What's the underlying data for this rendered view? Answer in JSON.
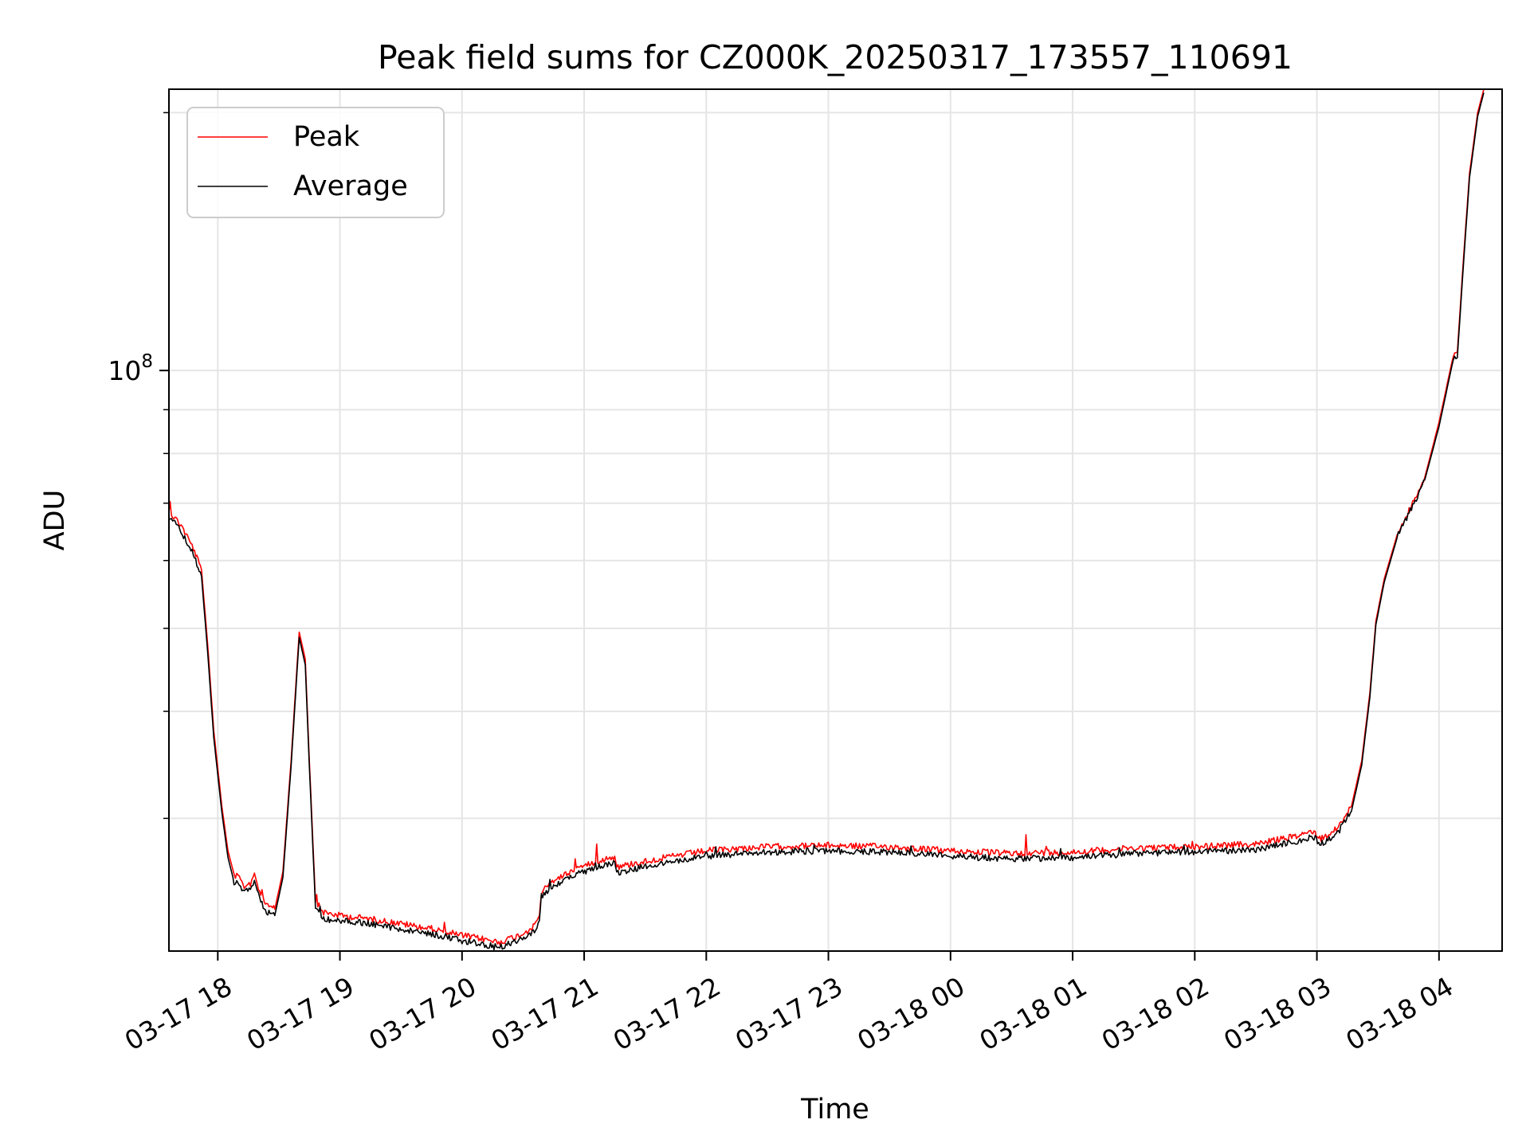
{
  "chart_data": {
    "type": "line",
    "title": "Peak field sums for CZ000K_20250317_173557_110691",
    "xlabel": "Time",
    "ylabel": "ADU",
    "yscale": "log",
    "grid": true,
    "legend_placement": "upper-left",
    "xlim": [
      "2025-03-17 17:36",
      "2025-03-18 04:31"
    ],
    "ylim": [
      21000000,
      213000000
    ],
    "x_ticks": [
      "2025-03-17 18:00",
      "2025-03-17 19:00",
      "2025-03-17 20:00",
      "2025-03-17 21:00",
      "2025-03-17 22:00",
      "2025-03-17 23:00",
      "2025-03-18 00:00",
      "2025-03-18 01:00",
      "2025-03-18 02:00",
      "2025-03-18 03:00",
      "2025-03-18 04:00"
    ],
    "x_tick_labels": [
      "03-17 18",
      "03-17 19",
      "03-17 20",
      "03-17 21",
      "03-17 22",
      "03-17 23",
      "03-18 00",
      "03-18 01",
      "03-18 02",
      "03-18 03",
      "03-18 04"
    ],
    "y_ticks": [
      100000000
    ],
    "y_tick_labels": [
      {
        "base": "10",
        "exp": "8"
      }
    ],
    "y_minor_ticks": [
      30000000,
      40000000,
      50000000,
      60000000,
      70000000,
      80000000,
      90000000,
      200000000
    ],
    "series": [
      {
        "name": "Peak",
        "color": "#ff0000",
        "points": [
          [
            "2025-03-17 17:36",
            68500000
          ],
          [
            "2025-03-17 17:42",
            66000000
          ],
          [
            "2025-03-17 17:48",
            62000000
          ],
          [
            "2025-03-17 17:52",
            58500000
          ],
          [
            "2025-03-17 17:55",
            48000000
          ],
          [
            "2025-03-17 17:58",
            38000000
          ],
          [
            "2025-03-17 18:02",
            31000000
          ],
          [
            "2025-03-17 18:05",
            27500000
          ],
          [
            "2025-03-17 18:08",
            25800000
          ],
          [
            "2025-03-17 18:10",
            25600000
          ],
          [
            "2025-03-17 18:13",
            25000000
          ],
          [
            "2025-03-17 18:16",
            25200000
          ],
          [
            "2025-03-17 18:18",
            25900000
          ],
          [
            "2025-03-17 18:20",
            24800000
          ],
          [
            "2025-03-17 18:24",
            23700000
          ],
          [
            "2025-03-17 18:28",
            23500000
          ],
          [
            "2025-03-17 18:32",
            26000000
          ],
          [
            "2025-03-17 18:36",
            35000000
          ],
          [
            "2025-03-17 18:40",
            49500000
          ],
          [
            "2025-03-17 18:43",
            46000000
          ],
          [
            "2025-03-17 18:45",
            35000000
          ],
          [
            "2025-03-17 18:48",
            24000000
          ],
          [
            "2025-03-17 18:52",
            23300000
          ],
          [
            "2025-03-17 19:00",
            23100000
          ],
          [
            "2025-03-17 19:15",
            22900000
          ],
          [
            "2025-03-17 19:30",
            22600000
          ],
          [
            "2025-03-17 19:45",
            22300000
          ],
          [
            "2025-03-17 20:00",
            21900000
          ],
          [
            "2025-03-17 20:10",
            21700000
          ],
          [
            "2025-03-17 20:18",
            21500000
          ],
          [
            "2025-03-17 20:28",
            21900000
          ],
          [
            "2025-03-17 20:35",
            22400000
          ],
          [
            "2025-03-17 20:38",
            23100000
          ],
          [
            "2025-03-17 20:39",
            24600000
          ],
          [
            "2025-03-17 20:45",
            25400000
          ],
          [
            "2025-03-17 20:55",
            26100000
          ],
          [
            "2025-03-17 21:05",
            26700000
          ],
          [
            "2025-03-17 21:15",
            27100000
          ],
          [
            "2025-03-17 21:16",
            26300000
          ],
          [
            "2025-03-17 21:25",
            26600000
          ],
          [
            "2025-03-17 21:40",
            27000000
          ],
          [
            "2025-03-17 22:00",
            27500000
          ],
          [
            "2025-03-17 22:30",
            27800000
          ],
          [
            "2025-03-17 23:00",
            27900000
          ],
          [
            "2025-03-17 23:30",
            27800000
          ],
          [
            "2025-03-18 00:00",
            27500000
          ],
          [
            "2025-03-18 00:30",
            27300000
          ],
          [
            "2025-03-18 01:00",
            27400000
          ],
          [
            "2025-03-18 01:30",
            27700000
          ],
          [
            "2025-03-18 02:00",
            27800000
          ],
          [
            "2025-03-18 02:30",
            28000000
          ],
          [
            "2025-03-18 02:50",
            28600000
          ],
          [
            "2025-03-18 02:58",
            29000000
          ],
          [
            "2025-03-18 03:02",
            28400000
          ],
          [
            "2025-03-18 03:10",
            29200000
          ],
          [
            "2025-03-18 03:17",
            31000000
          ],
          [
            "2025-03-18 03:22",
            35000000
          ],
          [
            "2025-03-18 03:26",
            42000000
          ],
          [
            "2025-03-18 03:29",
            51000000
          ],
          [
            "2025-03-18 03:33",
            57000000
          ],
          [
            "2025-03-18 03:40",
            65000000
          ],
          [
            "2025-03-18 03:50",
            72000000
          ],
          [
            "2025-03-18 03:53",
            75000000
          ],
          [
            "2025-03-18 04:00",
            87000000
          ],
          [
            "2025-03-18 04:07",
            104000000
          ],
          [
            "2025-03-18 04:09",
            105000000
          ],
          [
            "2025-03-18 04:12",
            135000000
          ],
          [
            "2025-03-18 04:15",
            170000000
          ],
          [
            "2025-03-18 04:19",
            200000000
          ],
          [
            "2025-03-18 04:22",
            213000000
          ]
        ]
      },
      {
        "name": "Average",
        "color": "#000000",
        "points": [
          [
            "2025-03-17 17:36",
            67500000
          ],
          [
            "2025-03-17 17:42",
            65000000
          ],
          [
            "2025-03-17 17:48",
            61000000
          ],
          [
            "2025-03-17 17:52",
            57500000
          ],
          [
            "2025-03-17 17:55",
            47000000
          ],
          [
            "2025-03-17 17:58",
            37300000
          ],
          [
            "2025-03-17 18:02",
            30500000
          ],
          [
            "2025-03-17 18:05",
            27000000
          ],
          [
            "2025-03-17 18:08",
            25300000
          ],
          [
            "2025-03-17 18:10",
            25100000
          ],
          [
            "2025-03-17 18:13",
            24600000
          ],
          [
            "2025-03-17 18:16",
            24800000
          ],
          [
            "2025-03-17 18:18",
            25400000
          ],
          [
            "2025-03-17 18:20",
            24400000
          ],
          [
            "2025-03-17 18:24",
            23300000
          ],
          [
            "2025-03-17 18:28",
            23100000
          ],
          [
            "2025-03-17 18:32",
            25600000
          ],
          [
            "2025-03-17 18:36",
            34500000
          ],
          [
            "2025-03-17 18:40",
            48800000
          ],
          [
            "2025-03-17 18:43",
            45300000
          ],
          [
            "2025-03-17 18:45",
            34500000
          ],
          [
            "2025-03-17 18:48",
            23600000
          ],
          [
            "2025-03-17 18:52",
            22900000
          ],
          [
            "2025-03-17 19:00",
            22800000
          ],
          [
            "2025-03-17 19:15",
            22600000
          ],
          [
            "2025-03-17 19:30",
            22300000
          ],
          [
            "2025-03-17 19:45",
            22000000
          ],
          [
            "2025-03-17 20:00",
            21600000
          ],
          [
            "2025-03-17 20:10",
            21400000
          ],
          [
            "2025-03-17 20:18",
            21200000
          ],
          [
            "2025-03-17 20:28",
            21600000
          ],
          [
            "2025-03-17 20:35",
            22100000
          ],
          [
            "2025-03-17 20:38",
            22800000
          ],
          [
            "2025-03-17 20:39",
            24300000
          ],
          [
            "2025-03-17 20:45",
            25000000
          ],
          [
            "2025-03-17 20:55",
            25700000
          ],
          [
            "2025-03-17 21:05",
            26300000
          ],
          [
            "2025-03-17 21:15",
            26700000
          ],
          [
            "2025-03-17 21:16",
            25900000
          ],
          [
            "2025-03-17 21:25",
            26200000
          ],
          [
            "2025-03-17 21:40",
            26600000
          ],
          [
            "2025-03-17 22:00",
            27100000
          ],
          [
            "2025-03-17 22:30",
            27400000
          ],
          [
            "2025-03-17 23:00",
            27500000
          ],
          [
            "2025-03-17 23:30",
            27400000
          ],
          [
            "2025-03-18 00:00",
            27100000
          ],
          [
            "2025-03-18 00:30",
            26900000
          ],
          [
            "2025-03-18 01:00",
            27000000
          ],
          [
            "2025-03-18 01:30",
            27300000
          ],
          [
            "2025-03-18 02:00",
            27400000
          ],
          [
            "2025-03-18 02:30",
            27600000
          ],
          [
            "2025-03-18 02:50",
            28200000
          ],
          [
            "2025-03-18 02:58",
            28600000
          ],
          [
            "2025-03-18 03:02",
            28000000
          ],
          [
            "2025-03-18 03:10",
            28800000
          ],
          [
            "2025-03-18 03:17",
            30600000
          ],
          [
            "2025-03-18 03:22",
            34600000
          ],
          [
            "2025-03-18 03:26",
            41500000
          ],
          [
            "2025-03-18 03:29",
            50500000
          ],
          [
            "2025-03-18 03:33",
            56500000
          ],
          [
            "2025-03-18 03:40",
            64500000
          ],
          [
            "2025-03-18 03:50",
            71500000
          ],
          [
            "2025-03-18 03:53",
            74500000
          ],
          [
            "2025-03-18 04:00",
            86000000
          ],
          [
            "2025-03-18 04:07",
            103000000
          ],
          [
            "2025-03-18 04:09",
            103500000
          ],
          [
            "2025-03-18 04:12",
            133000000
          ],
          [
            "2025-03-18 04:15",
            168000000
          ],
          [
            "2025-03-18 04:19",
            198000000
          ],
          [
            "2025-03-18 04:22",
            211000000
          ]
        ]
      }
    ]
  }
}
